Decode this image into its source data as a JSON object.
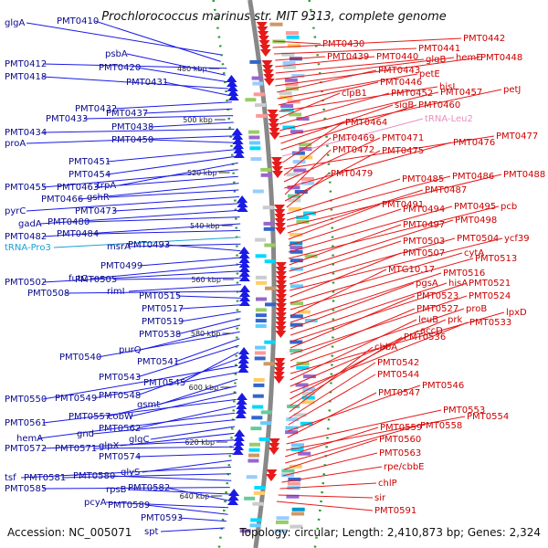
{
  "title": "Prochlorococcus marinus str. MIT 9313, complete genome",
  "footer": {
    "accession": "Accession: NC_005071",
    "topology": "Topology: circular; Length: 2,410,873 bp; Genes: 2,324"
  },
  "ticks": [
    "480 kbp",
    "500 kbp",
    "520 kbp",
    "540 kbp",
    "560 kbp",
    "580 kbp",
    "600 kbp",
    "620 kbp",
    "640 kbp"
  ],
  "left_labels": [
    "glgA",
    "PMT0410",
    "PMT0412",
    "psbA",
    "PMT0420",
    "PMT0418",
    "PMT0431",
    "PMT0432",
    "PMT0437",
    "PMT0433",
    "PMT0438",
    "PMT0434",
    "proA",
    "PMT0450",
    "PMT0451",
    "PMT0454",
    "trpA",
    "PMT0455",
    "PMT0463",
    "PMT0466",
    "gshR",
    "pyrC",
    "PMT0473",
    "gadA",
    "PMT0480",
    "PMT0482",
    "PMT0484",
    "tRNA-Pro3",
    "msrA",
    "PMT0493",
    "PMT0499",
    "futC",
    "PMT0502",
    "PMT0505",
    "rimI",
    "PMT0508",
    "PMT0515",
    "PMT0517",
    "PMT0519",
    "PMT0538",
    "purQ",
    "PMT0540",
    "PMT0541",
    "PMT0543",
    "PMT0545",
    "PMT0548",
    "PMT0550",
    "PMT0549",
    "gsmt",
    "PMT0557",
    "cobW",
    "PMT0561",
    "PMT0562",
    "hemA",
    "gnd",
    "glgC",
    "glpX",
    "PMT0572",
    "PMT0571",
    "PMT0574",
    "glyS",
    "tsf",
    "PMT0581",
    "PMT0580",
    "PMT0585",
    "rpsB",
    "PMT0582",
    "pcyA",
    "PMT0589",
    "PMT0593",
    "spt"
  ],
  "right_labels": [
    "PMT0430",
    "PMT0442",
    "PMT0441",
    "PMT0439",
    "PMT0440",
    "glgB",
    "hemE",
    "PMT0448",
    "PMT0443",
    "petE",
    "PMT0446",
    "hisI",
    "clpB1",
    "PMT0452",
    "PMT0457",
    "petJ",
    "sigB",
    "PMT0460",
    "tRNA-Leu2",
    "PMT0464",
    "PMT0477",
    "PMT0469",
    "PMT0471",
    "PMT0476",
    "PMT0472",
    "PMT0475",
    "PMT0479",
    "PMT0485",
    "PMT0486",
    "PMT0488",
    "PMT0487",
    "PMT0491",
    "PMT0494",
    "PMT0495",
    "pcb",
    "PMT0497",
    "PMT0498",
    "PMT0503",
    "PMT0504",
    "ycf39",
    "PMT0507",
    "cytA",
    "PMT0513",
    "MTG10.17",
    "PMT0516",
    "pgsA",
    "hisA",
    "PMT0521",
    "PMT0523",
    "PMT0524",
    "PMT0527",
    "proB",
    "lpxD",
    "leuB",
    "prk",
    "PMT0533",
    "accD",
    "PMT0536",
    "cbbA",
    "PMT0542",
    "PMT0544",
    "PMT0546",
    "PMT0547",
    "PMT0553",
    "PMT0554",
    "PMT0559",
    "PMT0558",
    "PMT0560",
    "PMT0563",
    "rpe/cbbE",
    "chlP",
    "sir",
    "PMT0591"
  ],
  "colors": {
    "forward": "#1a1ae6",
    "reverse": "#e61a1a",
    "backbone": "#888888",
    "tick_dot": "#2a9a2a"
  }
}
